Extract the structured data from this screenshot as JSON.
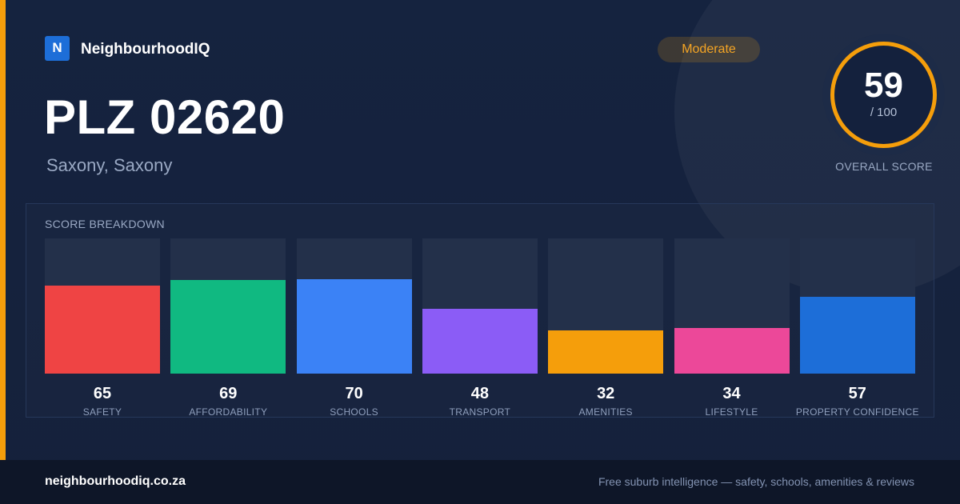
{
  "brand": {
    "logo_letter": "N",
    "name": "NeighbourhoodIQ"
  },
  "header": {
    "title": "PLZ 02620",
    "subtitle": "Saxony, Saxony"
  },
  "badge": {
    "label": "Moderate"
  },
  "overall": {
    "score": "59",
    "max_label": "/ 100",
    "caption": "OVERALL SCORE",
    "fraction": 0.59,
    "ring_color": "#f59e0b"
  },
  "breakdown": {
    "title": "SCORE BREAKDOWN"
  },
  "chart_data": {
    "type": "bar",
    "categories": [
      "SAFETY",
      "AFFORDABILITY",
      "SCHOOLS",
      "TRANSPORT",
      "AMENITIES",
      "LIFESTYLE",
      "PROPERTY CONFIDENCE"
    ],
    "values": [
      65,
      69,
      70,
      48,
      32,
      34,
      57
    ],
    "colors": [
      "#ef4444",
      "#10b981",
      "#3b82f6",
      "#8b5cf6",
      "#f59e0b",
      "#ec4899",
      "#1d6ed8"
    ],
    "ylim": [
      0,
      100
    ],
    "grid": false,
    "legend": "none"
  },
  "footer": {
    "url": "neighbourhoodiq.co.za",
    "tagline": "Free suburb intelligence — safety, schools, amenities & reviews"
  }
}
